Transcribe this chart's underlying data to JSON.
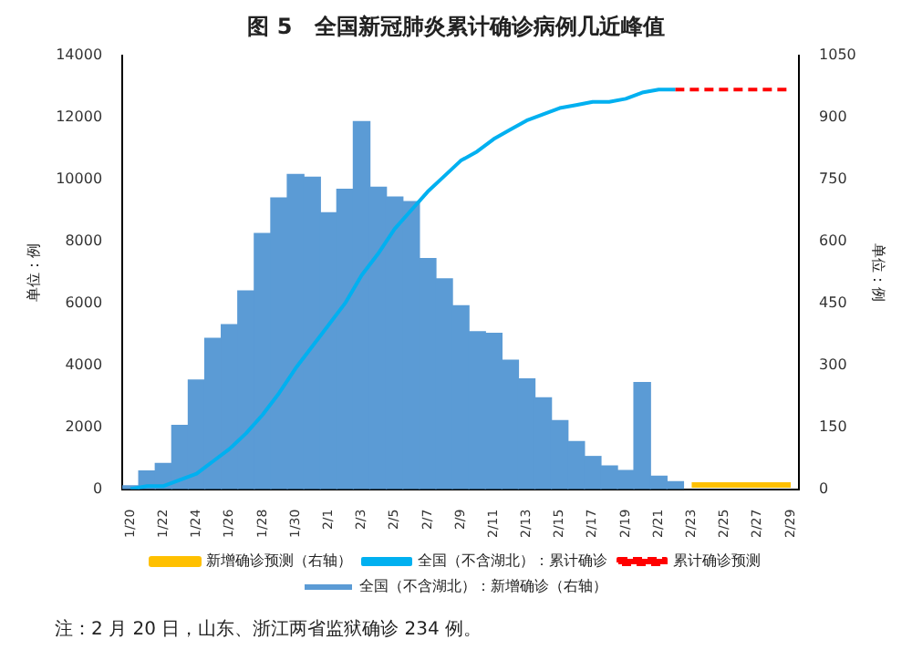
{
  "chart_data": {
    "type": "bar",
    "title": "图 5　全国新冠肺炎累计确诊病例几近峰值",
    "categories": [
      "1/20",
      null,
      "1/22",
      null,
      "1/24",
      null,
      "1/26",
      null,
      "1/28",
      null,
      "1/30",
      null,
      "2/1",
      null,
      "2/3",
      null,
      "2/5",
      null,
      "2/7",
      null,
      "2/9",
      null,
      "2/11",
      null,
      "2/13",
      null,
      "2/15",
      null,
      "2/17",
      null,
      "2/19",
      null,
      "2/21",
      null,
      "2/23",
      null,
      "2/25",
      null,
      "2/27",
      null,
      "2/29"
    ],
    "series": [
      {
        "name": "全国（不含湖北）：新增确诊（右轴）",
        "axis": "y2",
        "color": "#5b9bd5",
        "values": [
          8,
          44,
          62,
          154,
          264,
          365,
          398,
          480,
          619,
          705,
          762,
          755,
          669,
          726,
          890,
          731,
          707,
          696,
          558,
          509,
          444,
          381,
          377,
          312,
          267,
          221,
          166,
          115,
          79,
          56,
          45,
          258,
          31,
          18,
          null,
          null,
          null,
          null,
          null,
          null,
          null
        ]
      },
      {
        "name": "新增确诊预测（右轴）",
        "type": "line",
        "axis": "y2",
        "color": "#ffc000",
        "values": [
          null,
          null,
          null,
          null,
          null,
          null,
          null,
          null,
          null,
          null,
          null,
          null,
          null,
          null,
          null,
          null,
          null,
          null,
          null,
          null,
          null,
          null,
          null,
          null,
          null,
          null,
          null,
          null,
          null,
          null,
          null,
          null,
          null,
          null,
          10,
          10,
          10,
          10,
          10,
          10,
          10
        ]
      },
      {
        "name": "全国（不含湖北）：累计确诊",
        "type": "line",
        "axis": "y",
        "color": "#00b0f0",
        "values": [
          0,
          100,
          100,
          300,
          500,
          900,
          1300,
          1800,
          2400,
          3100,
          3900,
          4600,
          5300,
          6000,
          6900,
          7600,
          8400,
          9000,
          9600,
          10100,
          10600,
          10900,
          11300,
          11600,
          11900,
          12100,
          12300,
          12400,
          12500,
          12500,
          12600,
          12800,
          12900,
          12900,
          null,
          null,
          null,
          null,
          null,
          null,
          null
        ]
      },
      {
        "name": "累计确诊预测",
        "type": "line",
        "axis": "y",
        "color": "#ff0000",
        "line_style": "dashed",
        "values": [
          null,
          null,
          null,
          null,
          null,
          null,
          null,
          null,
          null,
          null,
          null,
          null,
          null,
          null,
          null,
          null,
          null,
          null,
          null,
          null,
          null,
          null,
          null,
          null,
          null,
          null,
          null,
          null,
          null,
          null,
          null,
          null,
          null,
          12900,
          12900,
          12900,
          12900,
          12900,
          12900,
          12900,
          12900
        ]
      }
    ],
    "ylabel": "单位：例",
    "y2label": "单位：例",
    "ylim": [
      0,
      14000
    ],
    "yticks": [
      0,
      2000,
      4000,
      6000,
      8000,
      10000,
      12000,
      14000
    ],
    "y2lim": [
      0,
      1050
    ],
    "y2ticks": [
      0,
      150,
      300,
      450,
      600,
      750,
      900,
      1050
    ],
    "grid": false,
    "legend": "bottom",
    "marker": "none",
    "annotations": [
      "注：2 月 20 日，山东、浙江两省监狱确诊 234 例。"
    ]
  }
}
